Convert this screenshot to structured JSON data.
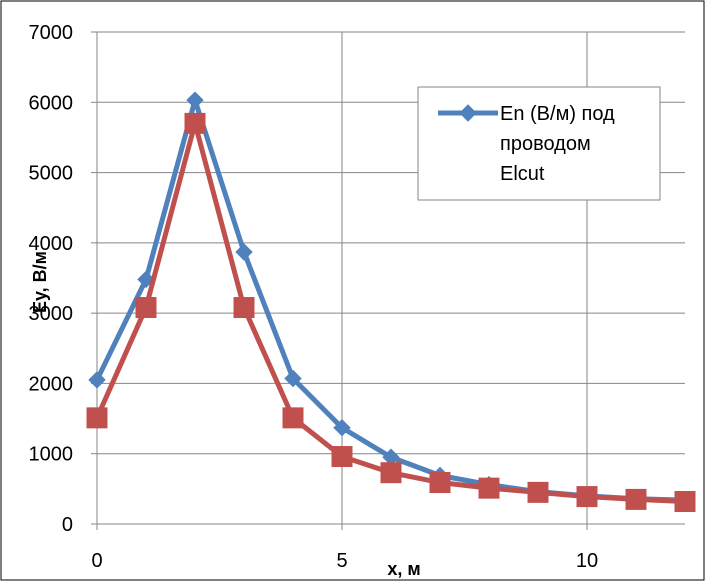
{
  "chart_data": {
    "type": "line",
    "title": "",
    "xlabel": "x, м",
    "ylabel": "Ey, В/м",
    "xlim": [
      0,
      12
    ],
    "ylim": [
      0,
      7000
    ],
    "x_ticks": [
      0,
      5,
      10
    ],
    "y_ticks": [
      0,
      1000,
      2000,
      3000,
      4000,
      5000,
      6000,
      7000
    ],
    "grid": true,
    "legend_placement": "top-right",
    "series": [
      {
        "name": "En (В/м) под проводом Elcut",
        "legend_lines": [
          "En (В/м) под",
          "проводом",
          "Elcut"
        ],
        "color": "#4F81BD",
        "marker": "diamond",
        "x": [
          0,
          1,
          2,
          3,
          4,
          5,
          6,
          7,
          8,
          9,
          10,
          11,
          12
        ],
        "y": [
          2050,
          3480,
          6030,
          3870,
          2070,
          1370,
          950,
          690,
          560,
          460,
          400,
          360,
          340
        ]
      },
      {
        "name": "",
        "color": "#C0504D",
        "marker": "square",
        "x": [
          0,
          1,
          2,
          3,
          4,
          5,
          6,
          7,
          8,
          9,
          10,
          11,
          12
        ],
        "y": [
          1510,
          3080,
          5700,
          3080,
          1510,
          960,
          730,
          590,
          510,
          450,
          390,
          350,
          320
        ]
      }
    ]
  }
}
